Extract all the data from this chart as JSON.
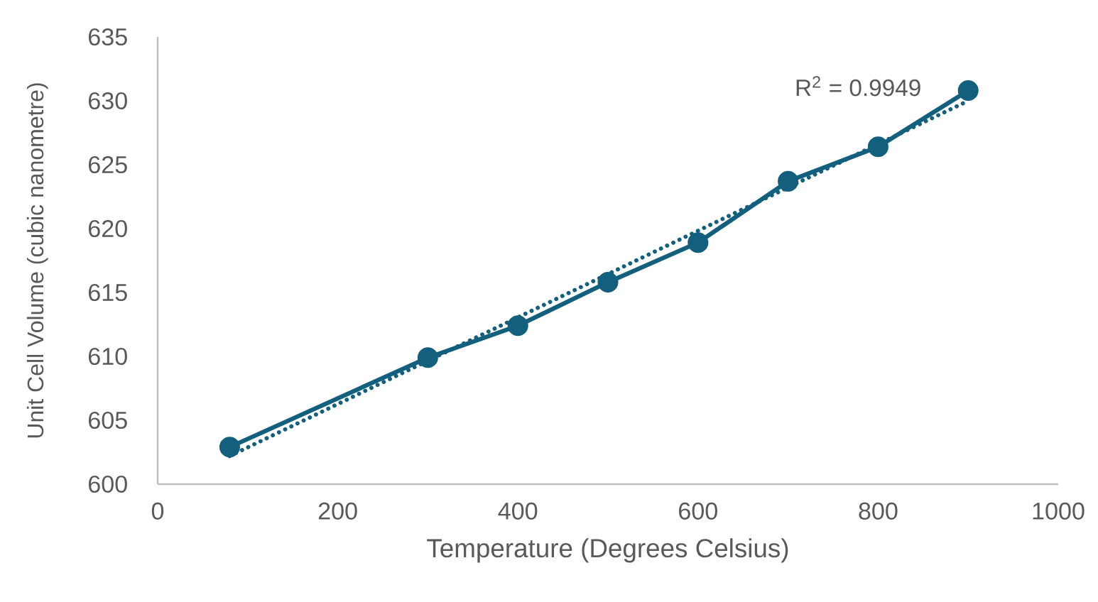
{
  "chart_data": {
    "type": "line",
    "xlabel": "Temperature (Degrees Celsius)",
    "ylabel": "Unit Cell Volume (cubic nanometre)",
    "xlim": [
      0,
      1000
    ],
    "xticks": [
      0,
      200,
      400,
      600,
      800,
      1000
    ],
    "ylim": [
      600,
      635
    ],
    "yticks": [
      600,
      605,
      610,
      615,
      620,
      625,
      630,
      635
    ],
    "grid": false,
    "annotations": [
      "R$^{2}$ = 0.9949"
    ],
    "series": [
      {
        "color": "#13607e",
        "marker": "circle",
        "line_style": "solid",
        "x": [
          80,
          300,
          400,
          500,
          600,
          700,
          800,
          900
        ],
        "values": [
          602.9,
          609.9,
          612.4,
          615.8,
          618.9,
          623.7,
          626.4,
          630.8
        ]
      },
      {
        "color": "#13607e",
        "marker": "none",
        "line_style": "dotted",
        "x": [
          80,
          900
        ],
        "values": [
          602.2,
          630.0
        ]
      }
    ]
  }
}
